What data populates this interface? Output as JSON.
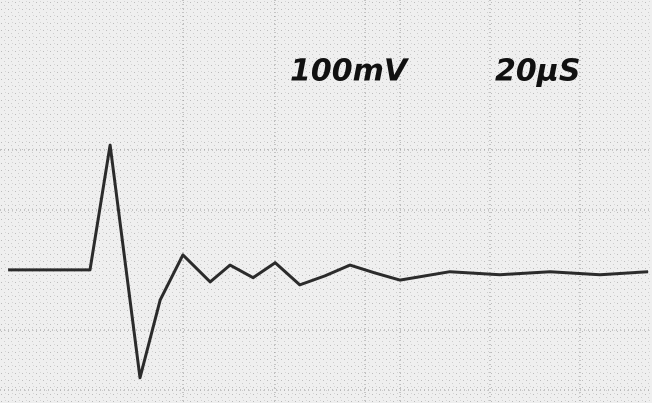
{
  "chart_data": {
    "type": "line",
    "labels": [
      "100mV",
      "20µS"
    ],
    "x": [
      0,
      25.2,
      31.4,
      40.6,
      46.8,
      53.8,
      62.2,
      68.3,
      75.4,
      82.2,
      89.8,
      97.5,
      105.2,
      112.9,
      120.6,
      136,
      151.4,
      166.8,
      182.2,
      197
    ],
    "series": [
      {
        "color": "#2b2b2b",
        "values": [
          0,
          0,
          208,
          -180,
          -50,
          25,
          -20,
          8,
          -13,
          12,
          -25,
          -10,
          8,
          -5,
          -17,
          -3,
          -8,
          -3,
          -8,
          -3
        ]
      }
    ],
    "xlim": [
      -2.5,
      198.2
    ],
    "ylim": [
      -222,
      450
    ]
  }
}
